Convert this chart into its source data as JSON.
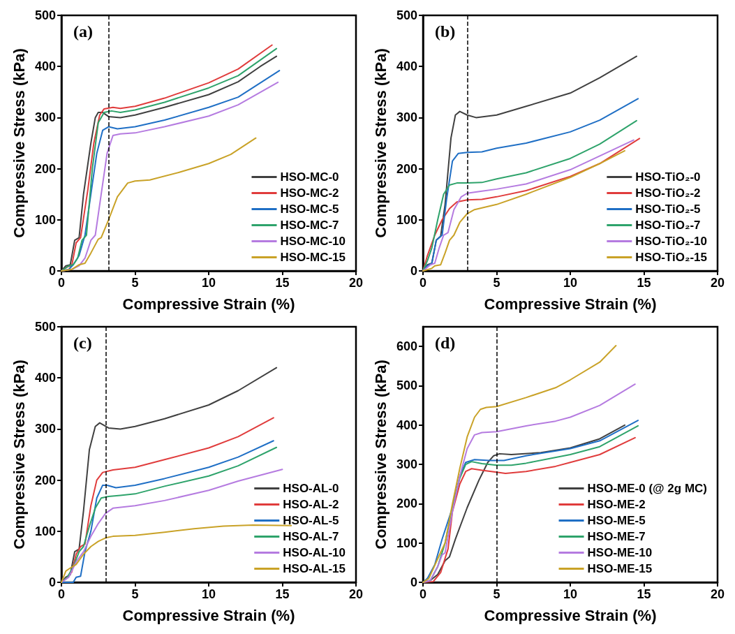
{
  "chart_data": [
    {
      "type": "line",
      "title": "(a)",
      "xlabel": "Compressive Strain (%)",
      "ylabel": "Compressive Stress (kPa)",
      "xlim": [
        0,
        20
      ],
      "xticks": [
        0,
        5,
        10,
        15,
        20
      ],
      "ylim": [
        0,
        500
      ],
      "yticks": [
        0,
        100,
        200,
        300,
        400,
        500
      ],
      "grid": false,
      "legend": "bottom right",
      "marker": "none",
      "line_style": "solid",
      "ref_lines": [
        {
          "axis": "x",
          "value": 3.2,
          "line_style": "dashed",
          "color": "#000000"
        }
      ],
      "series": [
        {
          "name": "HSO-MC-0",
          "color": "#404040",
          "x": [
            0,
            0.3,
            0.6,
            0.9,
            1.2,
            1.5,
            2.0,
            2.3,
            2.5,
            2.8,
            3.2,
            4,
            5,
            7,
            10,
            12,
            13.5,
            14.6
          ],
          "values": [
            0,
            10,
            12,
            60,
            65,
            150,
            250,
            300,
            310,
            310,
            302,
            300,
            305,
            320,
            345,
            370,
            400,
            420
          ]
        },
        {
          "name": "HSO-MC-2",
          "color": "#e03c3c",
          "x": [
            0,
            0.4,
            0.7,
            1.0,
            1.3,
            1.8,
            2.2,
            2.6,
            2.9,
            3.5,
            4,
            5,
            7,
            10,
            12,
            14.3
          ],
          "values": [
            0,
            8,
            10,
            55,
            65,
            160,
            250,
            305,
            317,
            320,
            318,
            322,
            338,
            368,
            395,
            442
          ]
        },
        {
          "name": "HSO-MC-5",
          "color": "#1f6fc5",
          "x": [
            0,
            0.5,
            0.8,
            1.2,
            1.6,
            2.0,
            2.4,
            2.8,
            3.2,
            3.8,
            5,
            7,
            10,
            12,
            14.8
          ],
          "values": [
            0,
            3,
            12,
            30,
            70,
            150,
            230,
            275,
            282,
            278,
            282,
            295,
            320,
            340,
            392
          ]
        },
        {
          "name": "HSO-MC-7",
          "color": "#2ea36b",
          "x": [
            0,
            0.5,
            0.8,
            1.1,
            1.4,
            1.7,
            2.1,
            2.5,
            2.9,
            3.4,
            4,
            5,
            7,
            10,
            12,
            14.6
          ],
          "values": [
            0,
            10,
            12,
            25,
            60,
            70,
            200,
            290,
            310,
            313,
            310,
            315,
            330,
            358,
            382,
            435
          ]
        },
        {
          "name": "HSO-MC-10",
          "color": "#b57be0",
          "x": [
            0,
            0.7,
            1.2,
            1.6,
            2.0,
            2.3,
            2.7,
            3.1,
            3.5,
            4,
            5,
            7,
            10,
            12,
            14.7
          ],
          "values": [
            0,
            3,
            10,
            25,
            60,
            70,
            150,
            230,
            265,
            268,
            270,
            282,
            303,
            325,
            369
          ]
        },
        {
          "name": "HSO-MC-15",
          "color": "#c9a227",
          "x": [
            0,
            0.7,
            1.2,
            1.6,
            2.0,
            2.5,
            2.7,
            3.2,
            3.8,
            4.5,
            5,
            6,
            8,
            10,
            11.5,
            13.2
          ],
          "values": [
            0,
            3,
            12,
            15,
            35,
            62,
            65,
            100,
            145,
            172,
            176,
            178,
            193,
            210,
            228,
            260
          ]
        }
      ]
    },
    {
      "type": "line",
      "title": "(b)",
      "xlabel": "Compressive Strain (%)",
      "ylabel": "Compressive Stress (kPa)",
      "xlim": [
        0,
        20
      ],
      "xticks": [
        0,
        5,
        10,
        15,
        20
      ],
      "ylim": [
        0,
        500
      ],
      "yticks": [
        0,
        100,
        200,
        300,
        400,
        500
      ],
      "grid": false,
      "legend": "bottom right",
      "marker": "none",
      "line_style": "solid",
      "ref_lines": [
        {
          "axis": "x",
          "value": 3,
          "line_style": "dashed",
          "color": "#000000"
        }
      ],
      "series": [
        {
          "name": "HSO-TiO₂-0",
          "color": "#404040",
          "x": [
            0,
            0.3,
            0.6,
            0.9,
            1.2,
            1.5,
            1.9,
            2.2,
            2.5,
            3,
            3.6,
            5,
            7,
            10,
            12,
            14.5
          ],
          "values": [
            0,
            12,
            15,
            60,
            68,
            130,
            260,
            305,
            312,
            305,
            300,
            305,
            322,
            348,
            378,
            420
          ]
        },
        {
          "name": "HSO-TiO₂-2",
          "color": "#e03c3c",
          "x": [
            0,
            0.3,
            0.8,
            1.3,
            1.8,
            2.3,
            3,
            4,
            5,
            7,
            10,
            12,
            14.7
          ],
          "values": [
            0,
            30,
            70,
            100,
            122,
            135,
            139,
            140,
            145,
            157,
            185,
            210,
            259
          ]
        },
        {
          "name": "HSO-TiO₂-5",
          "color": "#1f6fc5",
          "x": [
            0,
            0.3,
            0.6,
            0.9,
            1.3,
            1.6,
            2.0,
            2.4,
            3,
            4,
            5,
            7,
            10,
            12,
            14.6
          ],
          "values": [
            0,
            10,
            15,
            60,
            70,
            140,
            215,
            230,
            232,
            233,
            240,
            250,
            272,
            295,
            337
          ]
        },
        {
          "name": "HSO-TiO₂-7",
          "color": "#2ea36b",
          "x": [
            0,
            0.3,
            0.6,
            1.0,
            1.4,
            1.8,
            2.3,
            3,
            4,
            5,
            7,
            10,
            12,
            14.5
          ],
          "values": [
            0,
            20,
            45,
            100,
            150,
            168,
            172,
            172,
            173,
            180,
            192,
            220,
            248,
            294
          ]
        },
        {
          "name": "HSO-TiO₂-10",
          "color": "#b57be0",
          "x": [
            0,
            0.5,
            0.8,
            1.1,
            1.4,
            1.7,
            2.1,
            2.6,
            3,
            4,
            5,
            7,
            10,
            12,
            14.3
          ],
          "values": [
            0,
            12,
            15,
            45,
            70,
            75,
            120,
            145,
            152,
            156,
            160,
            170,
            198,
            225,
            256
          ]
        },
        {
          "name": "HSO-TiO₂-15",
          "color": "#c9a227",
          "x": [
            0,
            0.6,
            0.8,
            1.2,
            1.5,
            1.8,
            2.1,
            2.5,
            3,
            3.5,
            5,
            7,
            10,
            12,
            13.7
          ],
          "values": [
            0,
            5,
            10,
            12,
            35,
            60,
            70,
            95,
            112,
            120,
            130,
            150,
            183,
            210,
            235
          ]
        }
      ]
    },
    {
      "type": "line",
      "title": "(c)",
      "xlabel": "Compressive Strain (%)",
      "ylabel": "Compressive Stress (kPa)",
      "xlim": [
        0,
        20
      ],
      "xticks": [
        0,
        5,
        10,
        15,
        20
      ],
      "ylim": [
        0,
        500
      ],
      "yticks": [
        0,
        100,
        200,
        300,
        400,
        500
      ],
      "grid": false,
      "legend": "bottom right",
      "marker": "none",
      "line_style": "solid",
      "ref_lines": [
        {
          "axis": "x",
          "value": 3,
          "line_style": "dashed",
          "color": "#000000"
        }
      ],
      "series": [
        {
          "name": "HSO-AL-0",
          "color": "#404040",
          "x": [
            0,
            0.3,
            0.6,
            0.9,
            1.2,
            1.5,
            1.9,
            2.3,
            2.6,
            3.2,
            4,
            5,
            7,
            10,
            12,
            14.6
          ],
          "values": [
            0,
            10,
            15,
            60,
            65,
            140,
            260,
            305,
            312,
            302,
            300,
            305,
            320,
            347,
            375,
            420
          ]
        },
        {
          "name": "HSO-AL-2",
          "color": "#e03c3c",
          "x": [
            0,
            0.4,
            0.7,
            1.0,
            1.3,
            1.6,
            2.0,
            2.4,
            2.8,
            3.5,
            5,
            7,
            10,
            12,
            14.4
          ],
          "values": [
            0,
            10,
            20,
            55,
            70,
            75,
            150,
            200,
            215,
            220,
            225,
            240,
            263,
            285,
            322
          ]
        },
        {
          "name": "HSO-AL-5",
          "color": "#1f6fc5",
          "x": [
            0,
            0.8,
            1.0,
            1.3,
            1.6,
            2.0,
            2.4,
            2.8,
            3.1,
            3.7,
            5,
            7,
            10,
            12,
            14.4
          ],
          "values": [
            0,
            0,
            10,
            12,
            60,
            100,
            165,
            190,
            190,
            185,
            190,
            203,
            225,
            245,
            277
          ]
        },
        {
          "name": "HSO-AL-7",
          "color": "#2ea36b",
          "x": [
            0,
            0.4,
            0.8,
            1.2,
            1.5,
            1.9,
            2.3,
            2.7,
            3.2,
            4,
            5,
            7,
            10,
            12,
            14.6
          ],
          "values": [
            0,
            10,
            30,
            60,
            70,
            110,
            145,
            165,
            168,
            170,
            173,
            188,
            208,
            228,
            264
          ]
        },
        {
          "name": "HSO-AL-10",
          "color": "#b57be0",
          "x": [
            0,
            0.5,
            1.0,
            1.5,
            2.0,
            2.5,
            3,
            3.5,
            5,
            7,
            10,
            12,
            15
          ],
          "values": [
            0,
            10,
            40,
            60,
            90,
            115,
            135,
            145,
            150,
            160,
            180,
            198,
            221
          ]
        },
        {
          "name": "HSO-AL-15",
          "color": "#c9a227",
          "x": [
            0,
            0.3,
            0.6,
            1.0,
            1.5,
            2.0,
            2.5,
            3,
            3.5,
            5,
            7,
            9,
            11,
            13,
            15.6
          ],
          "values": [
            0,
            22,
            28,
            35,
            55,
            70,
            80,
            87,
            90,
            92,
            98,
            105,
            110,
            112,
            111
          ]
        }
      ]
    },
    {
      "type": "line",
      "title": "(d)",
      "xlabel": "Compressive Strain (%)",
      "ylabel": "Compressive Stress (kPa)",
      "xlim": [
        0,
        20
      ],
      "xticks": [
        0,
        5,
        10,
        15,
        20
      ],
      "ylim": [
        0,
        650
      ],
      "yticks": [
        0,
        100,
        200,
        300,
        400,
        500,
        600
      ],
      "grid": false,
      "legend": "bottom right",
      "marker": "none",
      "line_style": "solid",
      "ref_lines": [
        {
          "axis": "x",
          "value": 5,
          "line_style": "dashed",
          "color": "#000000"
        }
      ],
      "series": [
        {
          "name": "HSO-ME-0 (@ 2g MC)",
          "color": "#404040",
          "x": [
            0,
            0.5,
            1.0,
            1.5,
            1.8,
            2.2,
            3,
            3.8,
            4.4,
            4.8,
            5.2,
            6,
            8,
            10,
            12,
            13.7
          ],
          "values": [
            0,
            5,
            20,
            55,
            65,
            110,
            190,
            260,
            305,
            322,
            327,
            325,
            330,
            342,
            365,
            400
          ]
        },
        {
          "name": "HSO-ME-2",
          "color": "#e03c3c",
          "x": [
            0,
            0.7,
            1.2,
            1.7,
            2.0,
            2.5,
            2.9,
            3.3,
            4,
            5,
            5.6,
            7,
            9,
            10,
            12,
            14.4
          ],
          "values": [
            0,
            2,
            25,
            85,
            180,
            250,
            282,
            289,
            285,
            280,
            277,
            282,
            295,
            305,
            325,
            368
          ]
        },
        {
          "name": "HSO-ME-5",
          "color": "#1f6fc5",
          "x": [
            0,
            0.3,
            0.8,
            1.3,
            2.0,
            2.5,
            2.9,
            3.5,
            4.5,
            5.5,
            7,
            10,
            12,
            14.6
          ],
          "values": [
            0,
            10,
            45,
            110,
            190,
            270,
            305,
            312,
            310,
            310,
            322,
            340,
            360,
            412
          ]
        },
        {
          "name": "HSO-ME-7",
          "color": "#2ea36b",
          "x": [
            0,
            0.5,
            1.0,
            1.5,
            2.0,
            2.5,
            2.9,
            3.3,
            4,
            5,
            6,
            7,
            10,
            12,
            14.6
          ],
          "values": [
            0,
            5,
            40,
            100,
            190,
            265,
            300,
            307,
            302,
            298,
            298,
            303,
            325,
            345,
            398
          ]
        },
        {
          "name": "HSO-ME-10",
          "color": "#b57be0",
          "x": [
            0,
            0.5,
            1.0,
            1.3,
            1.5,
            2.0,
            2.5,
            3,
            3.5,
            4,
            5,
            7,
            9,
            10,
            12,
            14.4
          ],
          "values": [
            0,
            5,
            40,
            70,
            75,
            180,
            270,
            340,
            375,
            381,
            383,
            398,
            410,
            420,
            450,
            504
          ]
        },
        {
          "name": "HSO-ME-15",
          "color": "#c9a227",
          "x": [
            0,
            0.4,
            1.0,
            1.5,
            2.0,
            2.5,
            3,
            3.5,
            3.9,
            4.3,
            5,
            7,
            9,
            10,
            12,
            13.1
          ],
          "values": [
            0,
            10,
            60,
            100,
            200,
            290,
            370,
            420,
            440,
            445,
            447,
            470,
            495,
            515,
            560,
            602
          ]
        }
      ]
    }
  ]
}
